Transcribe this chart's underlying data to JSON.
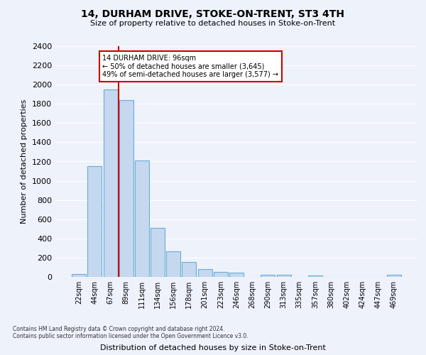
{
  "title": "14, DURHAM DRIVE, STOKE-ON-TRENT, ST3 4TH",
  "subtitle": "Size of property relative to detached houses in Stoke-on-Trent",
  "xlabel": "Distribution of detached houses by size in Stoke-on-Trent",
  "ylabel": "Number of detached properties",
  "bin_labels": [
    "22sqm",
    "44sqm",
    "67sqm",
    "89sqm",
    "111sqm",
    "134sqm",
    "156sqm",
    "178sqm",
    "201sqm",
    "223sqm",
    "246sqm",
    "268sqm",
    "290sqm",
    "313sqm",
    "335sqm",
    "357sqm",
    "380sqm",
    "402sqm",
    "424sqm",
    "447sqm",
    "469sqm"
  ],
  "bar_values": [
    30,
    1150,
    1950,
    1840,
    1210,
    510,
    265,
    155,
    80,
    50,
    45,
    0,
    25,
    20,
    0,
    15,
    0,
    0,
    0,
    0,
    20
  ],
  "bar_color": "#c5d8f0",
  "bar_edgecolor": "#6aadd5",
  "vline_x": 2.5,
  "vline_color": "#cc0000",
  "annotation_text": "14 DURHAM DRIVE: 96sqm\n← 50% of detached houses are smaller (3,645)\n49% of semi-detached houses are larger (3,577) →",
  "annotation_box_color": "#ffffff",
  "annotation_box_edgecolor": "#cc0000",
  "ylim": [
    0,
    2400
  ],
  "yticks": [
    0,
    200,
    400,
    600,
    800,
    1000,
    1200,
    1400,
    1600,
    1800,
    2000,
    2200,
    2400
  ],
  "footer_line1": "Contains HM Land Registry data © Crown copyright and database right 2024.",
  "footer_line2": "Contains public sector information licensed under the Open Government Licence v3.0.",
  "background_color": "#eef2fb",
  "plot_background_color": "#eef2fb",
  "grid_color": "#ffffff"
}
